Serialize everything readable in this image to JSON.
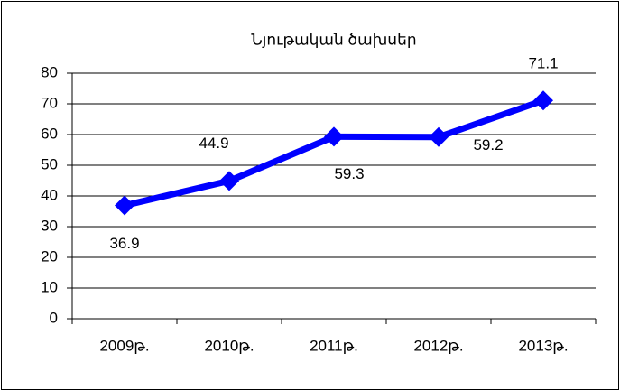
{
  "chart_data": {
    "type": "line",
    "title": "Նյութական ծախսեր",
    "categories": [
      "2009թ.",
      "2010թ.",
      "2011թ.",
      "2012թ.",
      "2013թ."
    ],
    "series": [
      {
        "name": "Նյութական ծախսեր",
        "color": "#0000ff",
        "values": [
          36.9,
          44.9,
          59.3,
          59.2,
          71.1
        ]
      }
    ],
    "ylim": [
      0,
      80
    ],
    "yticks": [
      0,
      10,
      20,
      30,
      40,
      50,
      60,
      70,
      80
    ],
    "grid": true,
    "legend": false
  }
}
